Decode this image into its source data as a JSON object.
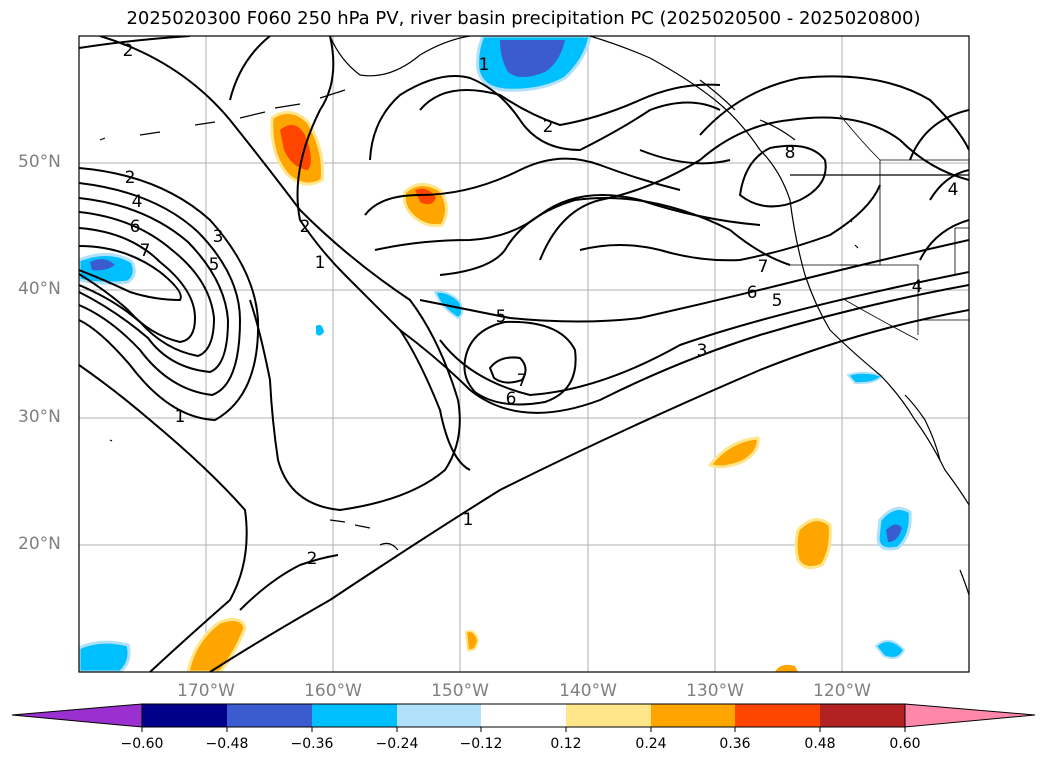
{
  "title": "2025020300 F060 250 hPa PV, river basin precipitation PC (2025020500 - 2025020800)",
  "chart_data": {
    "type": "map-contour",
    "lat_labels": [
      "50°N",
      "40°N",
      "30°N",
      "20°N"
    ],
    "lon_labels": [
      "170°W",
      "160°W",
      "150°W",
      "140°W",
      "130°W",
      "120°W"
    ],
    "contour_variable": "250 hPa PV",
    "contour_labels": [
      "1",
      "2",
      "3",
      "4",
      "5",
      "6",
      "7",
      "8"
    ],
    "shading_variable": "river basin precipitation PC",
    "colorbar": {
      "ticks": [
        "−0.60",
        "−0.48",
        "−0.36",
        "−0.24",
        "−0.12",
        "0.12",
        "0.24",
        "0.36",
        "0.48",
        "0.60"
      ],
      "colors": [
        "#9b30d0",
        "#00008b",
        "#3b5bd0",
        "#00bfff",
        "#b0e0fa",
        "#ffffff",
        "#ffe68a",
        "#ffa500",
        "#ff4500",
        "#b22222",
        "#ff88aa"
      ],
      "extend": "both"
    },
    "grid": true
  },
  "colors": {
    "axis": "#000000",
    "grid": "#b0b0b0",
    "tick_label": "#808080"
  }
}
